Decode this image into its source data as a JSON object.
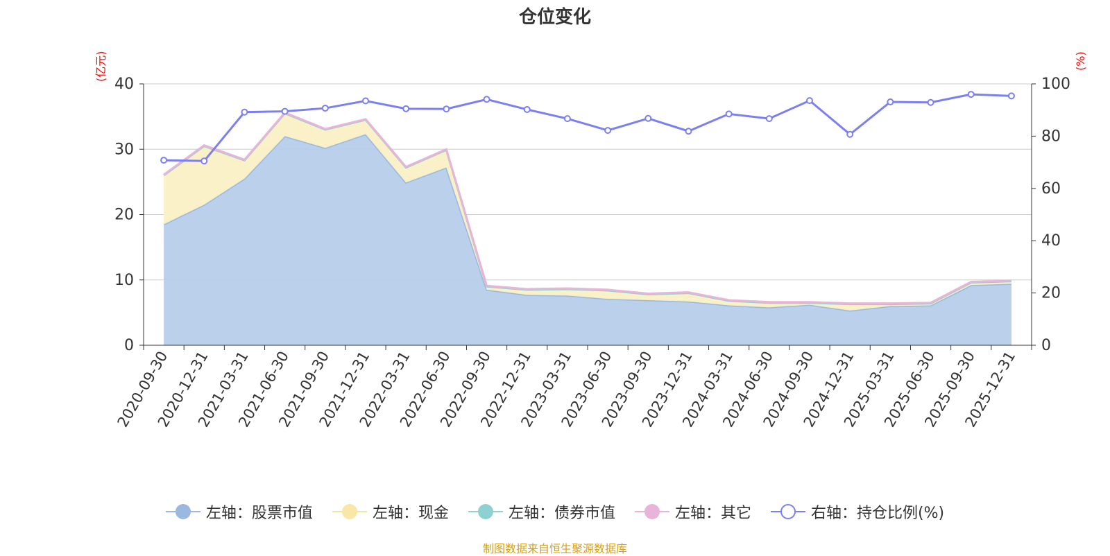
{
  "chart_data": {
    "type": "area",
    "title": "仓位变化",
    "source": "制图数据来自恒生聚源数据库",
    "left_axis_unit": "(亿元)",
    "right_axis_unit": "(%)",
    "left_ylim": [
      0,
      40
    ],
    "left_ticks": [
      "0",
      "10",
      "20",
      "30",
      "40"
    ],
    "right_ylim": [
      0,
      100
    ],
    "right_ticks": [
      "0",
      "20",
      "40",
      "60",
      "80",
      "100"
    ],
    "categories": [
      "2020-09-30",
      "2020-12-31",
      "2021-03-31",
      "2021-06-30",
      "2021-09-30",
      "2021-12-31",
      "2022-03-31",
      "2022-06-30",
      "2022-09-30",
      "2022-12-31",
      "2023-03-31",
      "2023-06-30",
      "2023-09-30",
      "2023-12-31",
      "2024-03-31",
      "2024-06-30",
      "2024-09-30",
      "2024-12-31",
      "2025-03-31",
      "2025-06-30",
      "2025-09-30",
      "2025-12-31"
    ],
    "series": [
      {
        "name": "左轴：股票市值",
        "axis": "left",
        "kind": "stacked-area",
        "color": "#9ab8e0",
        "fill": "#b7cdea",
        "values": [
          18.5,
          21.5,
          25.5,
          32.0,
          30.2,
          32.3,
          24.9,
          27.2,
          8.5,
          7.7,
          7.6,
          7.1,
          6.9,
          6.7,
          6.1,
          5.8,
          6.2,
          5.3,
          6.0,
          6.1,
          9.2,
          9.4
        ]
      },
      {
        "name": "左轴：现金",
        "axis": "left",
        "kind": "stacked-area",
        "color": "#f5e3a0",
        "fill": "#fbf0c6",
        "values": [
          7.5,
          9.0,
          2.8,
          3.5,
          2.8,
          2.2,
          2.3,
          2.7,
          0.5,
          0.8,
          1.0,
          1.3,
          0.9,
          1.3,
          0.7,
          0.7,
          0.3,
          1.0,
          0.3,
          0.3,
          0.4,
          0.4
        ]
      },
      {
        "name": "左轴：债券市值",
        "axis": "left",
        "kind": "stacked-area",
        "color": "#8fd1d1",
        "fill": "#bfe6e6",
        "values": [
          0,
          0,
          0,
          0,
          0,
          0,
          0,
          0,
          0,
          0,
          0,
          0,
          0,
          0,
          0,
          0,
          0,
          0,
          0,
          0,
          0,
          0
        ]
      },
      {
        "name": "左轴：其它",
        "axis": "left",
        "kind": "stacked-area",
        "color": "#e8b4d8",
        "fill": "#f3d6ea",
        "values": [
          0.1,
          0.1,
          0.1,
          0.1,
          0.1,
          0.1,
          0.1,
          0.1,
          0.1,
          0.1,
          0.1,
          0.1,
          0.1,
          0.1,
          0.1,
          0.1,
          0.1,
          0.1,
          0.1,
          0.1,
          0.1,
          0.1
        ]
      },
      {
        "name": "右轴：持仓比例(%)",
        "axis": "right",
        "kind": "line",
        "color": "#7b7ff0",
        "values": [
          70.8,
          70.5,
          89.2,
          89.5,
          90.7,
          93.5,
          90.5,
          90.4,
          94.1,
          90.2,
          86.7,
          82.2,
          86.8,
          81.9,
          88.5,
          86.7,
          93.6,
          80.7,
          93.1,
          92.9,
          96.0,
          95.4
        ]
      }
    ]
  }
}
